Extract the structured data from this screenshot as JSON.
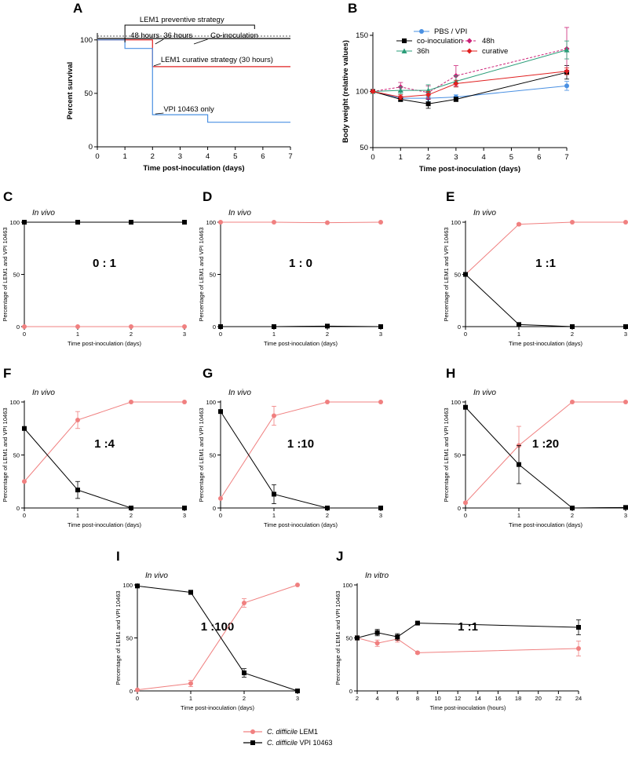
{
  "colors": {
    "lem1": "#f08080",
    "vpi": "#000000",
    "pbs": "#4a90e2",
    "coinoc": "#000000",
    "h48": "#cc2277",
    "h36": "#2a9d78",
    "curative": "#e02020",
    "survival_vpi": "#4a90e2",
    "survival_curative": "#e02020",
    "survival_prev": "#555555"
  },
  "legend": {
    "lem1_prefix": "C. difficile",
    "lem1_suffix": "LEM1",
    "vpi_prefix": "C. difficile",
    "vpi_suffix": "VPI 10463"
  },
  "chart_data": [
    {
      "panel": "A",
      "type": "line",
      "title": "",
      "xlabel": "Time post-inoculation (days)",
      "ylabel": "Percent survival",
      "xlim": [
        0,
        7
      ],
      "ylim": [
        0,
        105
      ],
      "xticks": [
        0,
        1,
        2,
        3,
        4,
        5,
        6,
        7
      ],
      "yticks": [
        0,
        50,
        100
      ],
      "annotations": {
        "preventive": "LEM1 preventive strategy",
        "h48": "48 hours",
        "h36": "36 hours",
        "coinoc": "Co-inoculation",
        "curative": "LEM1 curative strategy (30 hours)",
        "vpi_only": "VPI 10463 only"
      },
      "series": [
        {
          "name": "LEM1 preventive strategy",
          "color_key": "survival_prev",
          "x": [
            0,
            7
          ],
          "y": [
            101.5,
            101.5
          ]
        },
        {
          "name": "Co-inoculation",
          "color_key": "survival_prev",
          "x": [
            0,
            7
          ],
          "y": [
            101,
            101
          ]
        },
        {
          "name": "LEM1 curative strategy (30 hours)",
          "color_key": "survival_curative",
          "x": [
            0,
            1,
            1,
            2,
            2,
            7
          ],
          "y": [
            100,
            100,
            100,
            100,
            75,
            75
          ]
        },
        {
          "name": "VPI 10463 only",
          "color_key": "survival_vpi",
          "x": [
            0,
            1,
            1,
            2,
            2,
            4,
            4,
            7
          ],
          "y": [
            100,
            100,
            92,
            92,
            30,
            30,
            23,
            23
          ]
        }
      ]
    },
    {
      "panel": "B",
      "type": "line",
      "xlabel": "Time post-inoculation (days)",
      "ylabel": "Body weight (relative values)",
      "xlim": [
        0,
        7
      ],
      "ylim": [
        50,
        150
      ],
      "xticks": [
        0,
        1,
        2,
        3,
        4,
        5,
        6,
        7
      ],
      "yticks": [
        50,
        100,
        150
      ],
      "legend_entries": [
        "PBS / VPI",
        "co-inoculation",
        "48h",
        "36h",
        "curative"
      ],
      "series": [
        {
          "name": "PBS / VPI",
          "color_key": "pbs",
          "marker": "circle",
          "x": [
            0,
            1,
            2,
            3,
            7
          ],
          "y": [
            100,
            94,
            94,
            95,
            105
          ],
          "err": [
            1,
            2,
            3,
            2,
            4
          ]
        },
        {
          "name": "co-inoculation",
          "color_key": "coinoc",
          "marker": "square",
          "x": [
            0,
            1,
            2,
            3,
            7
          ],
          "y": [
            100,
            93,
            89,
            93,
            117
          ],
          "err": [
            1,
            2,
            4,
            2,
            6
          ]
        },
        {
          "name": "48h",
          "color_key": "h48",
          "marker": "diamond",
          "dashed": true,
          "x": [
            0,
            1,
            2,
            3,
            7
          ],
          "y": [
            100,
            104,
            99,
            114,
            138
          ],
          "err": [
            1,
            4,
            6,
            9,
            19
          ]
        },
        {
          "name": "36h",
          "color_key": "h36",
          "marker": "triangle",
          "x": [
            0,
            1,
            2,
            3,
            7
          ],
          "y": [
            100,
            101,
            101,
            109,
            137
          ],
          "err": [
            1,
            3,
            5,
            5,
            8
          ]
        },
        {
          "name": "curative",
          "color_key": "curative",
          "marker": "diamond",
          "x": [
            0,
            1,
            2,
            3,
            7
          ],
          "y": [
            100,
            95,
            97,
            107,
            118
          ],
          "err": [
            1,
            2,
            3,
            3,
            3
          ]
        }
      ]
    },
    {
      "panel": "C",
      "type": "line",
      "note": "In vivo",
      "ratio": "0 : 1",
      "xlabel": "Time post-inoculation (days)",
      "ylabel": "Percentage of LEM1 and VPI 10463",
      "xlim": [
        0,
        3
      ],
      "ylim": [
        0,
        100
      ],
      "xticks": [
        0,
        1,
        2,
        3
      ],
      "yticks": [
        0,
        50,
        100
      ],
      "series": [
        {
          "name": "LEM1",
          "color_key": "lem1",
          "x": [
            0,
            1,
            2,
            3
          ],
          "y": [
            0,
            0,
            0,
            0
          ],
          "err": [
            0,
            0,
            0,
            0
          ]
        },
        {
          "name": "VPI 10463",
          "color_key": "vpi",
          "x": [
            0,
            1,
            2,
            3
          ],
          "y": [
            100,
            100,
            100,
            100
          ],
          "err": [
            0,
            0,
            0,
            0
          ]
        }
      ]
    },
    {
      "panel": "D",
      "type": "line",
      "note": "In vivo",
      "ratio": "1 : 0",
      "xlabel": "Time post-inoculation (days)",
      "ylabel": "Percentage of LEM1 and VPI 10463",
      "xlim": [
        0,
        3
      ],
      "ylim": [
        0,
        100
      ],
      "xticks": [
        0,
        1,
        2,
        3
      ],
      "yticks": [
        0,
        50,
        100
      ],
      "series": [
        {
          "name": "LEM1",
          "color_key": "lem1",
          "x": [
            0,
            1,
            2,
            3
          ],
          "y": [
            100,
            100,
            99.5,
            100
          ],
          "err": [
            0,
            0,
            0,
            0
          ]
        },
        {
          "name": "VPI 10463",
          "color_key": "vpi",
          "x": [
            0,
            1,
            2,
            3
          ],
          "y": [
            0,
            0,
            0.5,
            0
          ],
          "err": [
            0,
            0,
            0,
            0
          ]
        }
      ]
    },
    {
      "panel": "E",
      "type": "line",
      "note": "In vivo",
      "ratio": "1 :1",
      "xlabel": "Time post-inoculation (days)",
      "ylabel": "Percentage of LEM1 and VPI 10463",
      "xlim": [
        0,
        3
      ],
      "ylim": [
        0,
        100
      ],
      "xticks": [
        0,
        1,
        2,
        3
      ],
      "yticks": [
        0,
        50,
        100
      ],
      "series": [
        {
          "name": "LEM1",
          "color_key": "lem1",
          "x": [
            0,
            1,
            2,
            3
          ],
          "y": [
            50,
            98,
            100,
            100
          ],
          "err": [
            0,
            1,
            0,
            0
          ]
        },
        {
          "name": "VPI 10463",
          "color_key": "vpi",
          "x": [
            0,
            1,
            2,
            3
          ],
          "y": [
            50,
            2,
            0,
            0
          ],
          "err": [
            0,
            1,
            0,
            0
          ]
        }
      ]
    },
    {
      "panel": "F",
      "type": "line",
      "note": "In vivo",
      "ratio": "1 :4",
      "xlabel": "Time post-inoculation (days)",
      "ylabel": "Percentage of LEM1 and VPI 10463",
      "xlim": [
        0,
        3
      ],
      "ylim": [
        0,
        100
      ],
      "xticks": [
        0,
        1,
        2,
        3
      ],
      "yticks": [
        0,
        50,
        100
      ],
      "series": [
        {
          "name": "LEM1",
          "color_key": "lem1",
          "x": [
            0,
            1,
            2,
            3
          ],
          "y": [
            25,
            83,
            100,
            100
          ],
          "err": [
            0,
            8,
            0,
            0
          ]
        },
        {
          "name": "VPI 10463",
          "color_key": "vpi",
          "x": [
            0,
            1,
            2,
            3
          ],
          "y": [
            75,
            17,
            0,
            0
          ],
          "err": [
            0,
            8,
            0,
            0
          ]
        }
      ]
    },
    {
      "panel": "G",
      "type": "line",
      "note": "In vivo",
      "ratio": "1 :10",
      "xlabel": "Time post-inoculation (days)",
      "ylabel": "Percentage of LEM1 and VPI 10463",
      "xlim": [
        0,
        3
      ],
      "ylim": [
        0,
        100
      ],
      "xticks": [
        0,
        1,
        2,
        3
      ],
      "yticks": [
        0,
        50,
        100
      ],
      "series": [
        {
          "name": "LEM1",
          "color_key": "lem1",
          "x": [
            0,
            1,
            2,
            3
          ],
          "y": [
            9,
            87,
            100,
            100
          ],
          "err": [
            0,
            9,
            0,
            0
          ]
        },
        {
          "name": "VPI 10463",
          "color_key": "vpi",
          "x": [
            0,
            1,
            2,
            3
          ],
          "y": [
            91,
            13,
            0,
            0
          ],
          "err": [
            0,
            9,
            0,
            0
          ]
        }
      ]
    },
    {
      "panel": "H",
      "type": "line",
      "note": "In vivo",
      "ratio": "1 :20",
      "xlabel": "Time post-inoculation (days)",
      "ylabel": "Percentage of LEM1 and VPI 10463",
      "xlim": [
        0,
        3
      ],
      "ylim": [
        0,
        100
      ],
      "xticks": [
        0,
        1,
        2,
        3
      ],
      "yticks": [
        0,
        50,
        100
      ],
      "series": [
        {
          "name": "LEM1",
          "color_key": "lem1",
          "x": [
            0,
            1,
            2,
            3
          ],
          "y": [
            5,
            59,
            100,
            100
          ],
          "err": [
            0,
            18,
            0,
            0
          ]
        },
        {
          "name": "VPI 10463",
          "color_key": "vpi",
          "x": [
            0,
            1,
            2,
            3
          ],
          "y": [
            95,
            41,
            0,
            0.5
          ],
          "err": [
            0,
            18,
            0,
            0
          ]
        }
      ]
    },
    {
      "panel": "I",
      "type": "line",
      "note": "In vivo",
      "ratio": "1 :100",
      "xlabel": "Time post-inoculation (days)",
      "ylabel": "Percentage of LEM1 and VPI 10463",
      "xlim": [
        0,
        3
      ],
      "ylim": [
        0,
        100
      ],
      "xticks": [
        0,
        1,
        2,
        3
      ],
      "yticks": [
        0,
        50,
        100
      ],
      "series": [
        {
          "name": "LEM1",
          "color_key": "lem1",
          "x": [
            0,
            1,
            2,
            3
          ],
          "y": [
            1,
            7,
            83,
            100
          ],
          "err": [
            0,
            3,
            4,
            0
          ]
        },
        {
          "name": "VPI 10463",
          "color_key": "vpi",
          "x": [
            0,
            1,
            2,
            3
          ],
          "y": [
            99,
            93,
            17,
            0
          ],
          "err": [
            0,
            2,
            4,
            0
          ]
        }
      ]
    },
    {
      "panel": "J",
      "type": "line",
      "note": "In vitro",
      "ratio": "1 :1",
      "xlabel": "Time post-inoculation (hours)",
      "ylabel": "Percentage of LEM1 and VPI 10463",
      "xlim": [
        2,
        24
      ],
      "ylim": [
        0,
        100
      ],
      "xticks": [
        2,
        4,
        6,
        8,
        10,
        12,
        14,
        16,
        18,
        20,
        22,
        24
      ],
      "yticks": [
        0,
        50,
        100
      ],
      "series": [
        {
          "name": "LEM1",
          "color_key": "lem1",
          "x": [
            2,
            4,
            6,
            8,
            24
          ],
          "y": [
            50,
            45,
            49,
            36,
            40
          ],
          "err": [
            2,
            3,
            3,
            1,
            7
          ]
        },
        {
          "name": "VPI 10463",
          "color_key": "vpi",
          "x": [
            2,
            4,
            6,
            8,
            24
          ],
          "y": [
            50,
            55,
            51,
            64,
            60
          ],
          "err": [
            2,
            3,
            3,
            1,
            7
          ]
        }
      ]
    }
  ]
}
